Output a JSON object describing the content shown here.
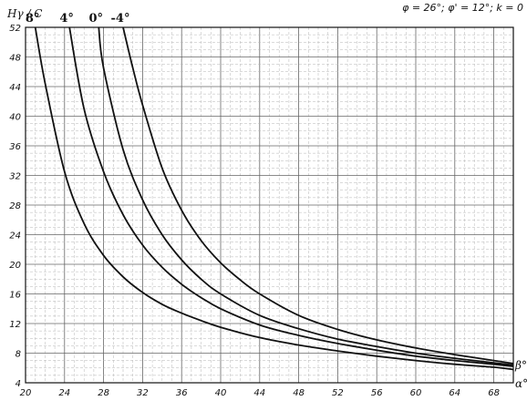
{
  "chart_data": {
    "type": "line",
    "title": "",
    "xlabel": "α°",
    "ylabel": "Hγ / C",
    "parameter_label": "β°",
    "conditions": "φ = 26°; φ' = 12°; k = 0",
    "xlim": [
      20,
      70
    ],
    "ylim": [
      4,
      52
    ],
    "xticks": [
      "20",
      "24",
      "28",
      "32",
      "36",
      "40",
      "44",
      "48",
      "52",
      "56",
      "60",
      "64",
      "68"
    ],
    "yticks": [
      "4",
      "8",
      "12",
      "16",
      "20",
      "24",
      "28",
      "32",
      "36",
      "40",
      "44",
      "48",
      "52"
    ],
    "grid": true,
    "series": [
      {
        "name": "8°",
        "x": [
          21.0,
          22,
          24,
          26,
          28,
          30,
          32,
          34,
          36,
          38,
          40,
          44,
          48,
          52,
          56,
          60,
          64,
          68,
          70
        ],
        "y": [
          52,
          44.5,
          32.5,
          25.5,
          21.2,
          18.3,
          16.2,
          14.6,
          13.4,
          12.4,
          11.5,
          10.1,
          9.1,
          8.3,
          7.6,
          7.0,
          6.5,
          6.1,
          5.8
        ]
      },
      {
        "name": "4°",
        "x": [
          24.5,
          26,
          28,
          30,
          32,
          34,
          36,
          38,
          40,
          44,
          48,
          52,
          56,
          60,
          64,
          68,
          70
        ],
        "y": [
          52,
          41,
          32.5,
          26.7,
          22.6,
          19.6,
          17.3,
          15.5,
          14.0,
          11.8,
          10.4,
          9.3,
          8.4,
          7.6,
          7.0,
          6.5,
          6.2
        ]
      },
      {
        "name": "0°",
        "x": [
          27.5,
          28,
          30,
          32,
          34,
          36,
          38,
          40,
          44,
          48,
          52,
          56,
          60,
          64,
          68,
          70
        ],
        "y": [
          52,
          46.5,
          35.5,
          28.7,
          24.0,
          20.6,
          18.0,
          16.0,
          13.1,
          11.3,
          9.9,
          8.9,
          8.0,
          7.3,
          6.7,
          6.4
        ]
      },
      {
        "name": "-4°",
        "x": [
          30.0,
          31,
          32,
          34,
          36,
          38,
          40,
          42,
          44,
          48,
          52,
          56,
          60,
          64,
          68,
          70
        ],
        "y": [
          52,
          46.5,
          41.5,
          33.0,
          27.3,
          23.2,
          20.2,
          17.9,
          16.0,
          13.1,
          11.2,
          9.8,
          8.7,
          7.8,
          7.0,
          6.6
        ]
      }
    ]
  }
}
